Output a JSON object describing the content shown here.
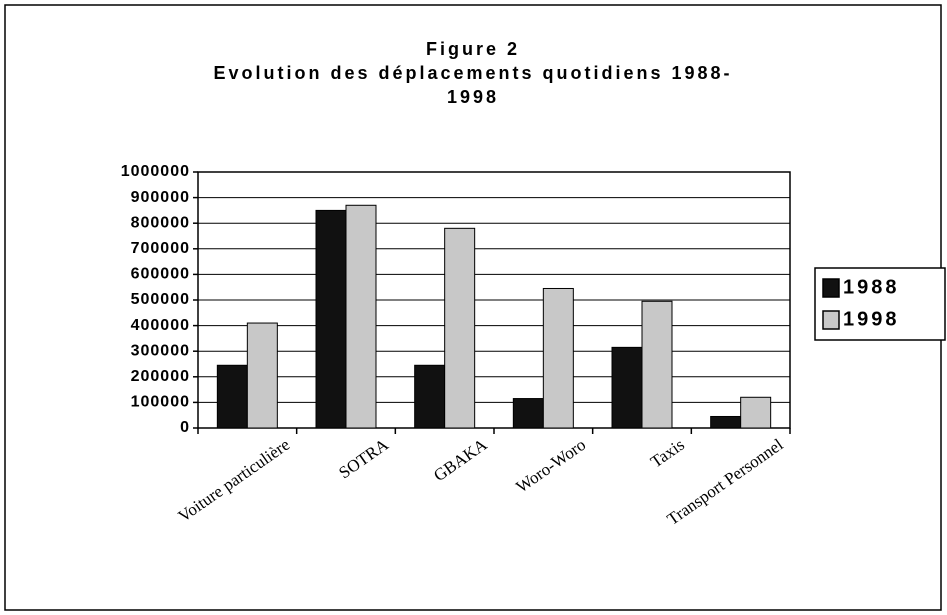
{
  "chart_data": {
    "type": "bar",
    "title": [
      "Figure 2",
      "Evolution des déplacements quotidiens 1988-",
      "1998"
    ],
    "categories": [
      "Voiture particulière",
      "SOTRA",
      "GBAKA",
      "Woro-Woro",
      "Taxis",
      "Transport Personnel"
    ],
    "series": [
      {
        "name": "1988",
        "color": "#111111",
        "values": [
          245000,
          850000,
          245000,
          115000,
          315000,
          45000
        ]
      },
      {
        "name": "1998",
        "color": "#c8c8c8",
        "values": [
          410000,
          870000,
          780000,
          545000,
          495000,
          120000
        ]
      }
    ],
    "ylim": [
      0,
      1000000
    ],
    "yticks": [
      0,
      100000,
      200000,
      300000,
      400000,
      500000,
      600000,
      700000,
      800000,
      900000,
      1000000
    ],
    "grid": true,
    "legend": "right"
  }
}
